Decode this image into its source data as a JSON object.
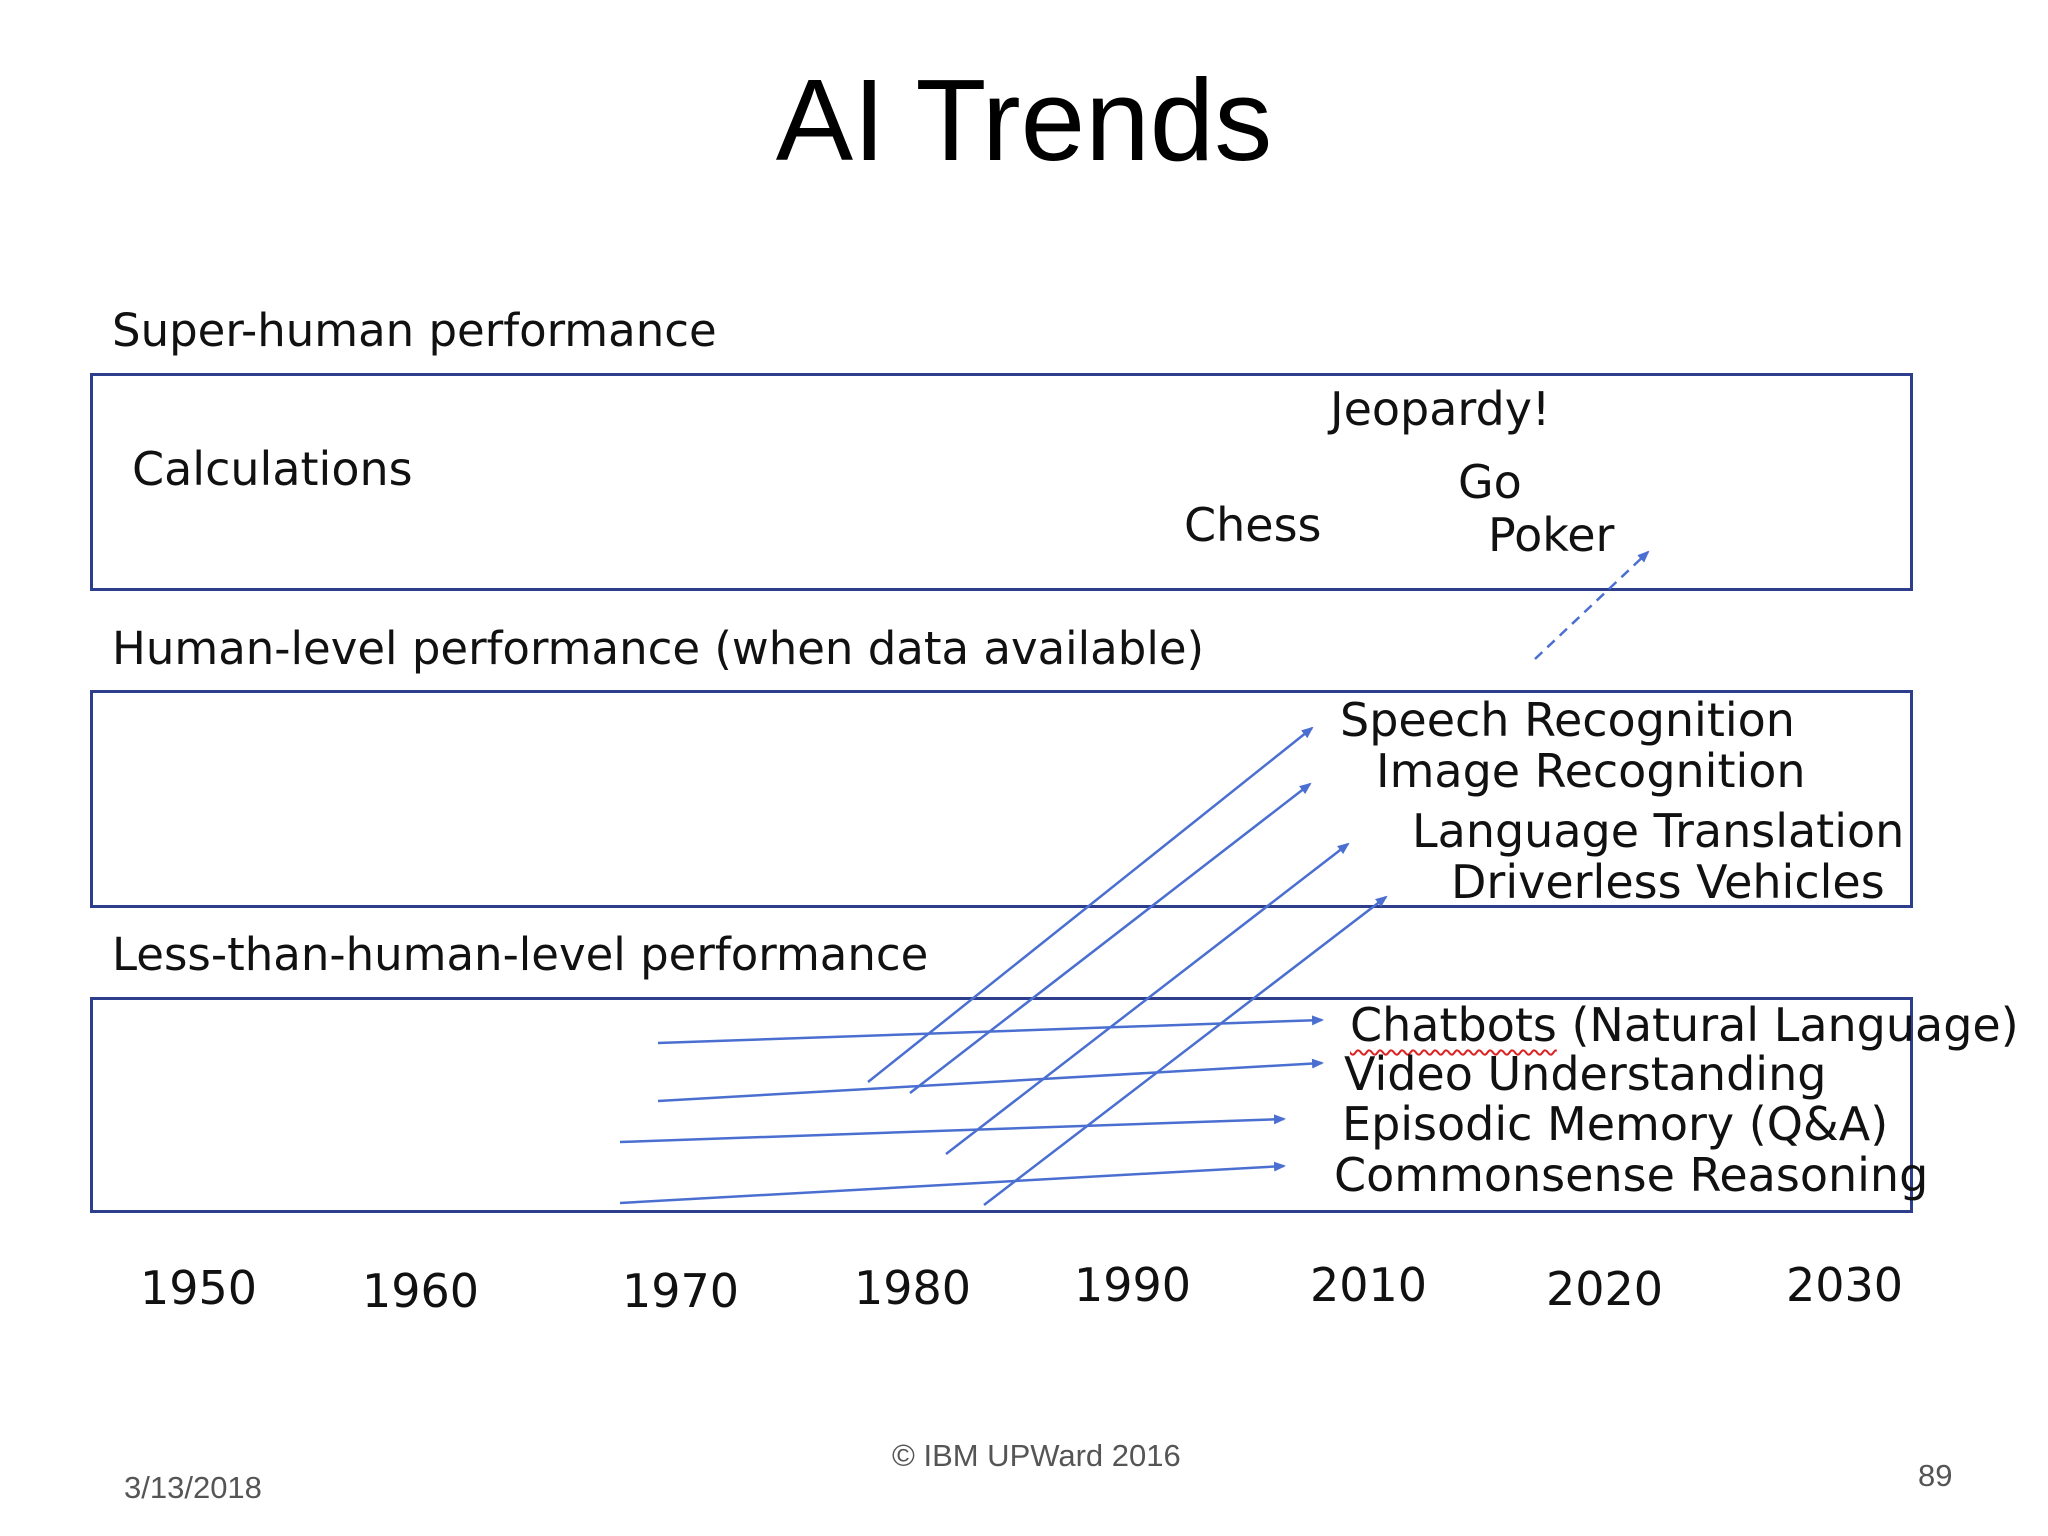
{
  "title": "AI Trends",
  "bands": {
    "super": {
      "label": "Super-human performance",
      "items": [
        "Calculations",
        "Jeopardy!",
        "Go",
        "Chess",
        "Poker"
      ]
    },
    "human": {
      "label": "Human-level performance (when data available)",
      "items": [
        "Speech Recognition",
        "Image Recognition",
        "Language Translation",
        "Driverless Vehicles"
      ]
    },
    "less": {
      "label": "Less-than-human-level performance",
      "items": [
        "Chatbots",
        "(Natural Language)",
        "Video Understanding",
        "Episodic Memory (Q&A)",
        "Commonsense Reasoning"
      ]
    }
  },
  "years": [
    "1950",
    "1960",
    "1970",
    "1980",
    "1990",
    "2010",
    "2020",
    "2030"
  ],
  "footer": {
    "copyright": "© IBM UPWard 2016",
    "date": "3/13/2018",
    "page": "89"
  },
  "colors": {
    "arrow": "#4a6fd0",
    "border": "#2c3e8c"
  }
}
